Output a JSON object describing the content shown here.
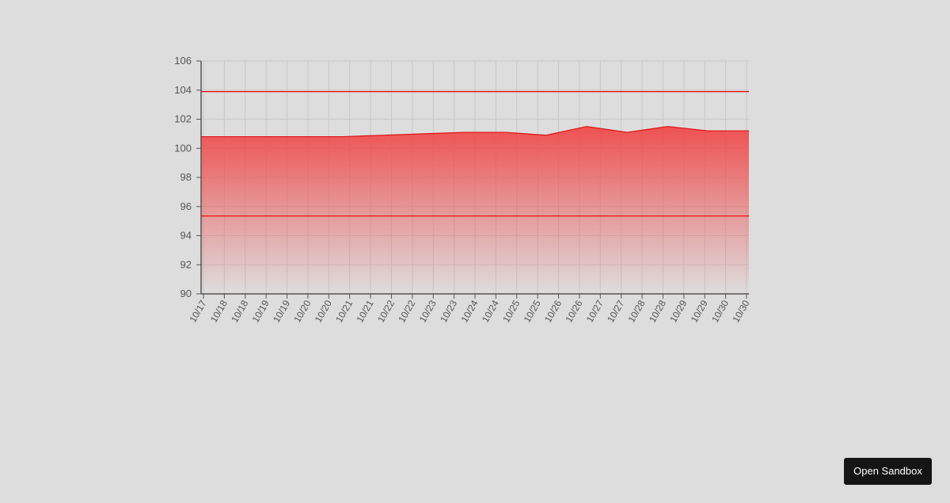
{
  "chart_data": {
    "type": "area",
    "title": "",
    "xlabel": "",
    "ylabel": "",
    "ylim": [
      90,
      106
    ],
    "y_ticks": [
      90,
      92,
      94,
      96,
      98,
      100,
      102,
      104,
      106
    ],
    "x_tick_labels": [
      "10/17",
      "10/18",
      "10/18",
      "10/19",
      "10/19",
      "10/20",
      "10/20",
      "10/21",
      "10/21",
      "10/22",
      "10/22",
      "10/23",
      "10/23",
      "10/24",
      "10/24",
      "10/25",
      "10/25",
      "10/26",
      "10/26",
      "10/27",
      "10/27",
      "10/28",
      "10/28",
      "10/29",
      "10/29",
      "10/30",
      "10/30"
    ],
    "series": [
      {
        "values": [
          100.8,
          100.8,
          100.8,
          100.8,
          100.8,
          100.8,
          100.8,
          100.8,
          100.85,
          100.9,
          100.95,
          101.0,
          101.05,
          101.1,
          101.1,
          101.1,
          101.0,
          100.9,
          101.2,
          101.5,
          101.3,
          101.1,
          101.3,
          101.5,
          101.35,
          101.2,
          101.2,
          101.2
        ]
      }
    ],
    "reference_lines": [
      103.9,
      95.35
    ],
    "grid": true,
    "legend": "none",
    "colors": {
      "line": "#dd1111",
      "fill_top": "#f04a4a",
      "reference": "#ee0000",
      "axis": "#555555",
      "grid": "#c8c8c8",
      "tick_text": "#555555"
    }
  },
  "sandbox_button": {
    "label": "Open Sandbox"
  }
}
